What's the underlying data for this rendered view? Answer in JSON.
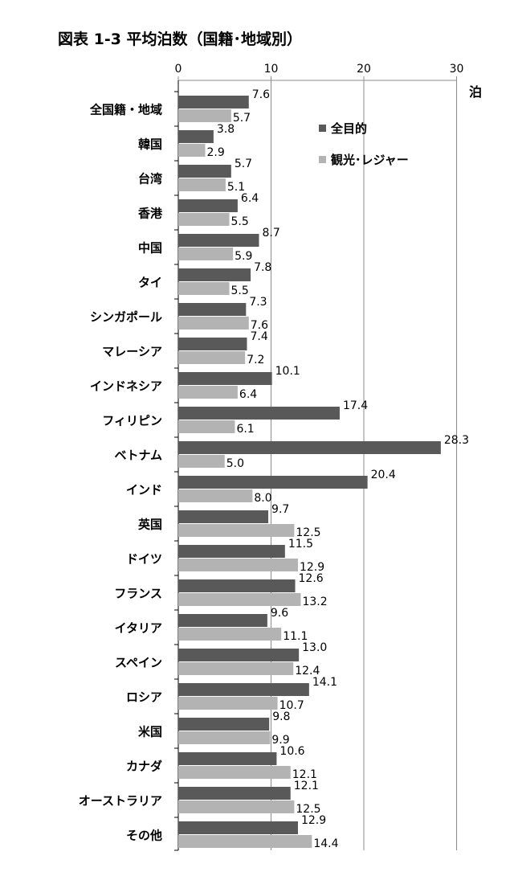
{
  "title": "図表 1-3  平均泊数（国籍･地域別）",
  "unit": "泊",
  "chart_data": {
    "type": "bar",
    "orientation": "horizontal",
    "title": "図表 1-3  平均泊数（国籍･地域別）",
    "xlabel": "",
    "ylabel": "",
    "unit": "泊",
    "xlim": [
      0,
      30
    ],
    "ticks": [
      0,
      10,
      20,
      30
    ],
    "tick_labels": [
      "0",
      "10",
      "20",
      "30"
    ],
    "grid": true,
    "legend_position": "top-right",
    "categories": [
      "全国籍・地域",
      "韓国",
      "台湾",
      "香港",
      "中国",
      "タイ",
      "シンガポール",
      "マレーシア",
      "インドネシア",
      "フィリピン",
      "ベトナム",
      "インド",
      "英国",
      "ドイツ",
      "フランス",
      "イタリア",
      "スペイン",
      "ロシア",
      "米国",
      "カナダ",
      "オーストラリア",
      "その他"
    ],
    "series": [
      {
        "name": "全目的",
        "color": "#595959",
        "values": [
          7.6,
          3.8,
          5.7,
          6.4,
          8.7,
          7.8,
          7.3,
          7.4,
          10.1,
          17.4,
          28.3,
          20.4,
          9.7,
          11.5,
          12.6,
          9.6,
          13.0,
          14.1,
          9.8,
          10.6,
          12.1,
          12.9
        ],
        "labels": [
          "7.6",
          "3.8",
          "5.7",
          "6.4",
          "8.7",
          "7.8",
          "7.3",
          "7.4",
          "10.1",
          "17.4",
          "28.3",
          "20.4",
          "9.7",
          "11.5",
          "12.6",
          "9.6",
          "13.0",
          "14.1",
          "9.8",
          "10.6",
          "12.1",
          "12.9"
        ]
      },
      {
        "name": "観光･レジャー",
        "color": "#b3b3b3",
        "values": [
          5.7,
          2.9,
          5.1,
          5.5,
          5.9,
          5.5,
          7.6,
          7.2,
          6.4,
          6.1,
          5.0,
          8.0,
          12.5,
          12.9,
          13.2,
          11.1,
          12.4,
          10.7,
          9.9,
          12.1,
          12.5,
          14.4
        ],
        "labels": [
          "5.7",
          "2.9",
          "5.1",
          "5.5",
          "5.9",
          "5.5",
          "7.6",
          "7.2",
          "6.4",
          "6.1",
          "5.0",
          "8.0",
          "12.5",
          "12.9",
          "13.2",
          "11.1",
          "12.4",
          "10.7",
          "9.9",
          "12.1",
          "12.5",
          "14.4"
        ]
      }
    ]
  }
}
